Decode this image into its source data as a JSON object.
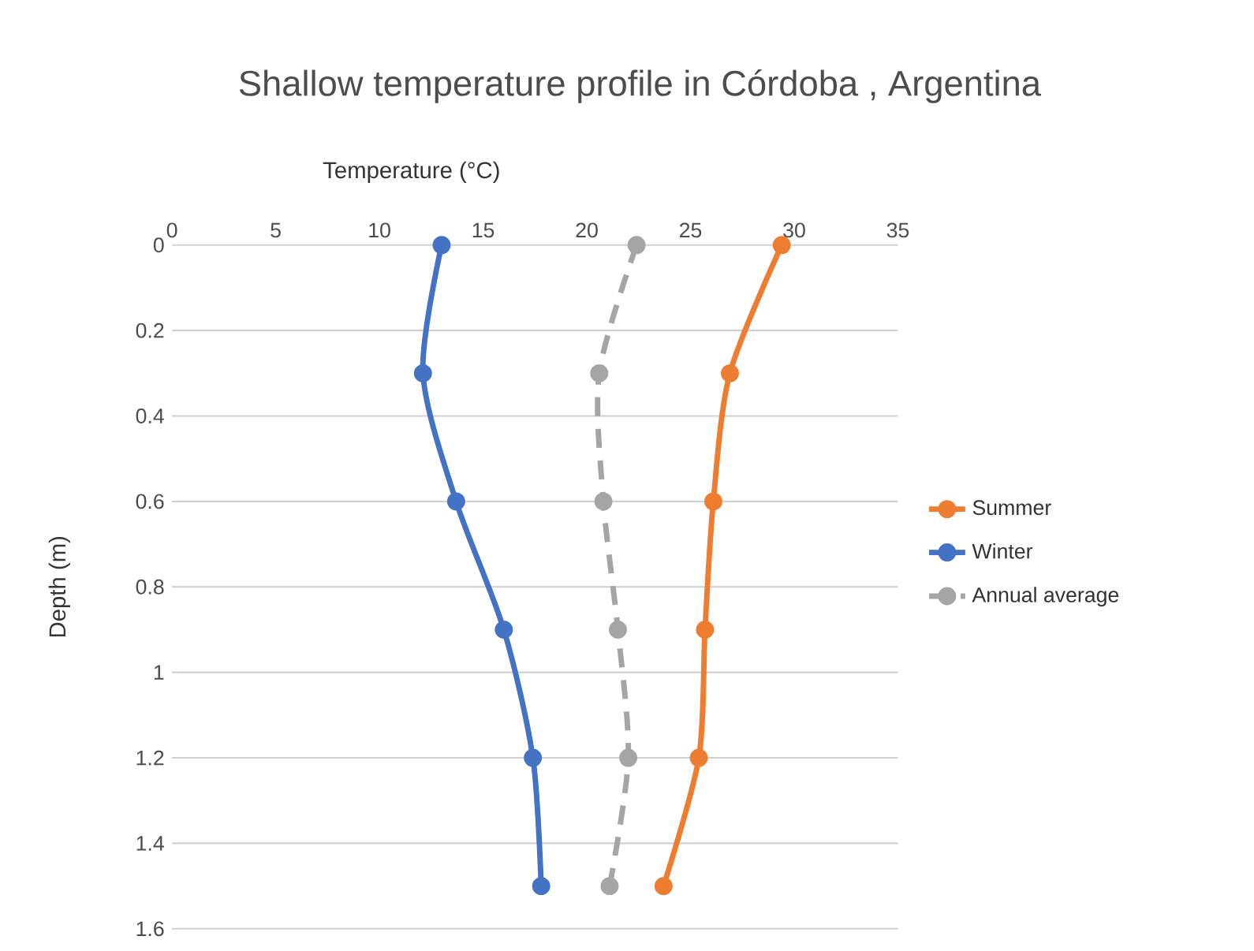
{
  "chart_data": {
    "type": "line",
    "title": "Shallow temperature profile in Córdoba , Argentina",
    "xlabel": "Temperature (°C)",
    "ylabel": "Depth (m)",
    "xlim": [
      0,
      35
    ],
    "xticks": [
      0,
      5,
      10,
      15,
      20,
      25,
      30,
      35
    ],
    "ylim": [
      1.6,
      0
    ],
    "yticks": [
      0,
      0.2,
      0.4,
      0.6,
      0.8,
      1,
      1.2,
      1.4,
      1.6
    ],
    "grid": "y",
    "legend": "right",
    "marker": "circle",
    "series": [
      {
        "name": "Summer",
        "color": "#ed7d31",
        "x": [
          29.4,
          26.9,
          26.1,
          25.7,
          25.4,
          23.7
        ],
        "values": [
          0,
          0.3,
          0.6,
          0.9,
          1.2,
          1.5
        ]
      },
      {
        "name": "Winter",
        "color": "#4472c4",
        "x": [
          13.0,
          12.1,
          13.7,
          16.0,
          17.4,
          17.8
        ],
        "values": [
          0,
          0.3,
          0.6,
          0.9,
          1.2,
          1.5
        ]
      },
      {
        "name": "Annual average",
        "color": "#a5a5a5",
        "line_style": "dashed",
        "x": [
          22.4,
          20.6,
          20.8,
          21.5,
          22.0,
          21.1
        ],
        "values": [
          0,
          0.3,
          0.6,
          0.9,
          1.2,
          1.5
        ]
      }
    ]
  }
}
